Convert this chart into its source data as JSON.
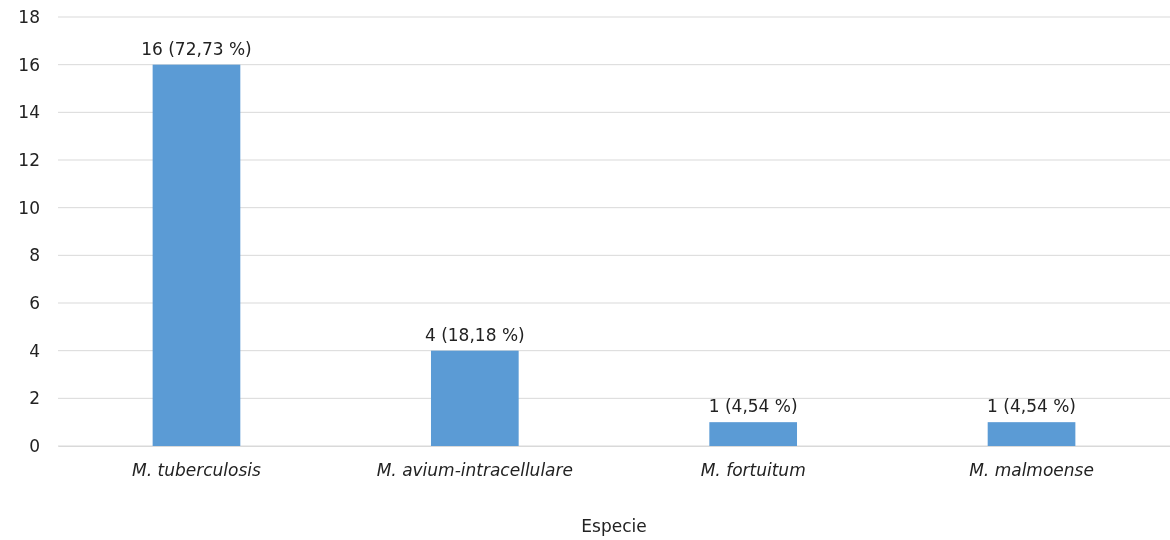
{
  "chart_data": {
    "type": "bar",
    "xlabel": "Especie",
    "categories": [
      "M. tuberculosis",
      "M. avium-intracellulare",
      "M. fortuitum",
      "M. malmoense"
    ],
    "values": [
      16,
      4,
      1,
      1
    ],
    "color": "#5b9bd5",
    "value_labels": [
      "16 (72,73 %)",
      "4 (18,18 %)",
      "1 (4,54 %)",
      "1 (4,54 %)"
    ],
    "ylim": [
      0,
      18
    ],
    "yticks": [
      0,
      2,
      4,
      6,
      8,
      10,
      12,
      14,
      16,
      18
    ],
    "grid": "y"
  }
}
